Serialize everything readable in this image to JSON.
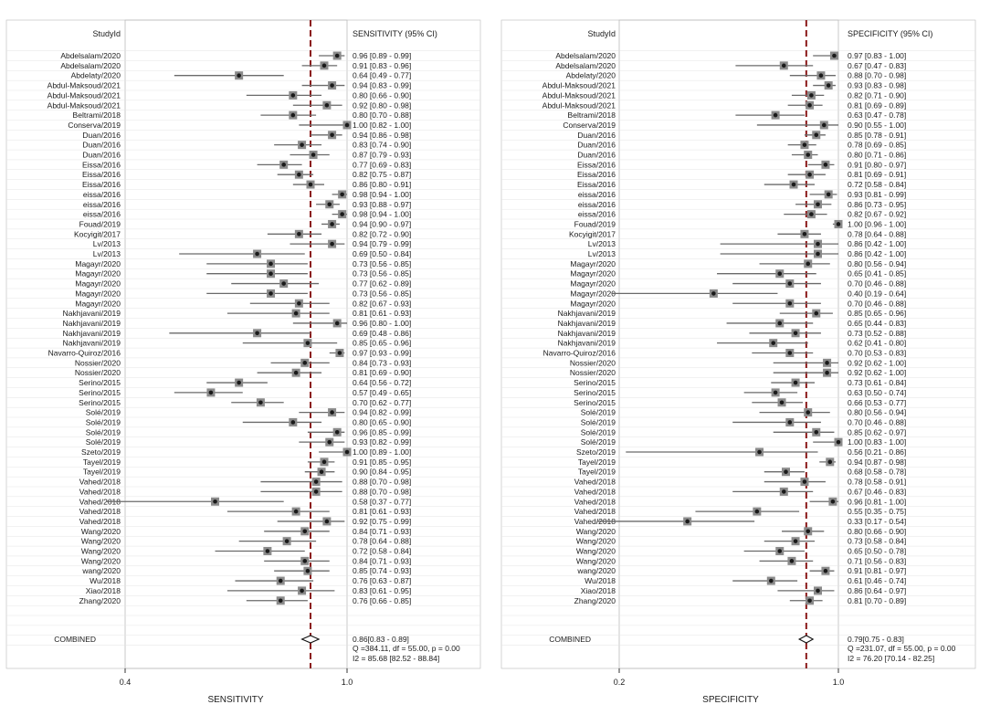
{
  "colors": {
    "background": "#ffffff",
    "panel_border": "#bbbbbb",
    "combined_line": "#8b1a1a",
    "marker_box": "#8a8a8a",
    "marker_point": "#1a1a1a",
    "ci_line": "#6a6a6a",
    "gridline": "#e4e4e4"
  },
  "chart_data": [
    {
      "type": "forest",
      "measure": "sensitivity",
      "axis_label": "SENSITIVITY",
      "study_header": "StudyId",
      "ci_header": "SENSITIVITY (95% CI)",
      "xscale": "log",
      "xlim": [
        0.4,
        1.0
      ],
      "xticks": [
        "0.4",
        "1.0"
      ],
      "tick_values": [
        0.4,
        1.0
      ],
      "combined_value": 0.86,
      "studies": [
        {
          "name": "Abdelsalam/2020",
          "ci_text": "0.96 [0.89 - 0.99]",
          "est": 0.96,
          "lo": 0.89,
          "hi": 0.99
        },
        {
          "name": "Abdelsalam/2020",
          "ci_text": "0.91 [0.83 - 0.96]",
          "est": 0.91,
          "lo": 0.83,
          "hi": 0.96
        },
        {
          "name": "Abdelaty/2020",
          "ci_text": "0.64 [0.49 - 0.77]",
          "est": 0.64,
          "lo": 0.49,
          "hi": 0.77
        },
        {
          "name": "Abdul-Maksoud/2021",
          "ci_text": "0.94 [0.83 - 0.99]",
          "est": 0.94,
          "lo": 0.83,
          "hi": 0.99
        },
        {
          "name": "Abdul-Maksoud/2021",
          "ci_text": "0.80 [0.66 - 0.90]",
          "est": 0.8,
          "lo": 0.66,
          "hi": 0.9
        },
        {
          "name": "Abdul-Maksoud/2021",
          "ci_text": "0.92 [0.80 - 0.98]",
          "est": 0.92,
          "lo": 0.8,
          "hi": 0.98
        },
        {
          "name": "Beltrami/2018",
          "ci_text": "0.80 [0.70 - 0.88]",
          "est": 0.8,
          "lo": 0.7,
          "hi": 0.88
        },
        {
          "name": "Conserva/2019",
          "ci_text": "1.00 [0.82 - 1.00]",
          "est": 1.0,
          "lo": 0.82,
          "hi": 1.0
        },
        {
          "name": "Duan/2016",
          "ci_text": "0.94 [0.86 - 0.98]",
          "est": 0.94,
          "lo": 0.86,
          "hi": 0.98
        },
        {
          "name": "Duan/2016",
          "ci_text": "0.83 [0.74 - 0.90]",
          "est": 0.83,
          "lo": 0.74,
          "hi": 0.9
        },
        {
          "name": "Duan/2016",
          "ci_text": "0.87 [0.79 - 0.93]",
          "est": 0.87,
          "lo": 0.79,
          "hi": 0.93
        },
        {
          "name": "Eissa/2016",
          "ci_text": "0.77 [0.69 - 0.83]",
          "est": 0.77,
          "lo": 0.69,
          "hi": 0.83
        },
        {
          "name": "Eissa/2016",
          "ci_text": "0.82 [0.75 - 0.87]",
          "est": 0.82,
          "lo": 0.75,
          "hi": 0.87
        },
        {
          "name": "Eissa/2016",
          "ci_text": "0.86 [0.80 - 0.91]",
          "est": 0.86,
          "lo": 0.8,
          "hi": 0.91
        },
        {
          "name": "eissa/2016",
          "ci_text": "0.98 [0.94 - 1.00]",
          "est": 0.98,
          "lo": 0.94,
          "hi": 1.0
        },
        {
          "name": "eissa/2016",
          "ci_text": "0.93 [0.88 - 0.97]",
          "est": 0.93,
          "lo": 0.88,
          "hi": 0.97
        },
        {
          "name": "eissa/2016",
          "ci_text": "0.98 [0.94 - 1.00]",
          "est": 0.98,
          "lo": 0.94,
          "hi": 1.0
        },
        {
          "name": "Fouad/2019",
          "ci_text": "0.94 [0.90 - 0.97]",
          "est": 0.94,
          "lo": 0.9,
          "hi": 0.97
        },
        {
          "name": "Kocyigit/2017",
          "ci_text": "0.82 [0.72 - 0.90]",
          "est": 0.82,
          "lo": 0.72,
          "hi": 0.9
        },
        {
          "name": "Lv/2013",
          "ci_text": "0.94 [0.79 - 0.99]",
          "est": 0.94,
          "lo": 0.79,
          "hi": 0.99
        },
        {
          "name": "Lv/2013",
          "ci_text": "0.69 [0.50 - 0.84]",
          "est": 0.69,
          "lo": 0.5,
          "hi": 0.84
        },
        {
          "name": "Magayr/2020",
          "ci_text": "0.73 [0.56 - 0.85]",
          "est": 0.73,
          "lo": 0.56,
          "hi": 0.85
        },
        {
          "name": "Magayr/2020",
          "ci_text": "0.73 [0.56 - 0.85]",
          "est": 0.73,
          "lo": 0.56,
          "hi": 0.85
        },
        {
          "name": "Magayr/2020",
          "ci_text": "0.77 [0.62 - 0.89]",
          "est": 0.77,
          "lo": 0.62,
          "hi": 0.89
        },
        {
          "name": "Magayr/2020",
          "ci_text": "0.73 [0.56 - 0.85]",
          "est": 0.73,
          "lo": 0.56,
          "hi": 0.85
        },
        {
          "name": "Magayr/2020",
          "ci_text": "0.82 [0.67 - 0.93]",
          "est": 0.82,
          "lo": 0.67,
          "hi": 0.93
        },
        {
          "name": "Nakhjavani/2019",
          "ci_text": "0.81 [0.61 - 0.93]",
          "est": 0.81,
          "lo": 0.61,
          "hi": 0.93
        },
        {
          "name": "Nakhjavani/2019",
          "ci_text": "0.96 [0.80 - 1.00]",
          "est": 0.96,
          "lo": 0.8,
          "hi": 1.0
        },
        {
          "name": "Nakhjavani/2019",
          "ci_text": "0.69 [0.48 - 0.86]",
          "est": 0.69,
          "lo": 0.48,
          "hi": 0.86
        },
        {
          "name": "Nakhjavani/2019",
          "ci_text": "0.85 [0.65 - 0.96]",
          "est": 0.85,
          "lo": 0.65,
          "hi": 0.96
        },
        {
          "name": "Navarro-Quiroz/2016",
          "ci_text": "0.97 [0.93 - 0.99]",
          "est": 0.97,
          "lo": 0.93,
          "hi": 0.99
        },
        {
          "name": "Nossier/2020",
          "ci_text": "0.84 [0.73 - 0.93]",
          "est": 0.84,
          "lo": 0.73,
          "hi": 0.93
        },
        {
          "name": "Nossier/2020",
          "ci_text": "0.81 [0.69 - 0.90]",
          "est": 0.81,
          "lo": 0.69,
          "hi": 0.9
        },
        {
          "name": "Serino/2015",
          "ci_text": "0.64 [0.56 - 0.72]",
          "est": 0.64,
          "lo": 0.56,
          "hi": 0.72
        },
        {
          "name": "Serino/2015",
          "ci_text": "0.57 [0.49 - 0.65]",
          "est": 0.57,
          "lo": 0.49,
          "hi": 0.65
        },
        {
          "name": "Serino/2015",
          "ci_text": "0.70 [0.62 - 0.77]",
          "est": 0.7,
          "lo": 0.62,
          "hi": 0.77
        },
        {
          "name": "Solé/2019",
          "ci_text": "0.94 [0.82 - 0.99]",
          "est": 0.94,
          "lo": 0.82,
          "hi": 0.99
        },
        {
          "name": "Solé/2019",
          "ci_text": "0.80 [0.65 - 0.90]",
          "est": 0.8,
          "lo": 0.65,
          "hi": 0.9
        },
        {
          "name": "Solé/2019",
          "ci_text": "0.96 [0.85 - 0.99]",
          "est": 0.96,
          "lo": 0.85,
          "hi": 0.99
        },
        {
          "name": "Solé/2019",
          "ci_text": "0.93 [0.82 - 0.99]",
          "est": 0.93,
          "lo": 0.82,
          "hi": 0.99
        },
        {
          "name": "Szeto/2019",
          "ci_text": "1.00 [0.89 - 1.00]",
          "est": 1.0,
          "lo": 0.89,
          "hi": 1.0
        },
        {
          "name": "Tayel/2019",
          "ci_text": "0.91 [0.85 - 0.95]",
          "est": 0.91,
          "lo": 0.85,
          "hi": 0.95
        },
        {
          "name": "Tayel/2019",
          "ci_text": "0.90 [0.84 - 0.95]",
          "est": 0.9,
          "lo": 0.84,
          "hi": 0.95
        },
        {
          "name": "Vahed/2018",
          "ci_text": "0.88 [0.70 - 0.98]",
          "est": 0.88,
          "lo": 0.7,
          "hi": 0.98
        },
        {
          "name": "Vahed/2018",
          "ci_text": "0.88 [0.70 - 0.98]",
          "est": 0.88,
          "lo": 0.7,
          "hi": 0.98
        },
        {
          "name": "Vahed/2018",
          "ci_text": "0.58 [0.37 - 0.77]",
          "est": 0.58,
          "lo": 0.37,
          "hi": 0.77
        },
        {
          "name": "Vahed/2018",
          "ci_text": "0.81 [0.61 - 0.93]",
          "est": 0.81,
          "lo": 0.61,
          "hi": 0.93
        },
        {
          "name": "Vahed/2018",
          "ci_text": "0.92 [0.75 - 0.99]",
          "est": 0.92,
          "lo": 0.75,
          "hi": 0.99
        },
        {
          "name": "Wang/2020",
          "ci_text": "0.84 [0.71 - 0.93]",
          "est": 0.84,
          "lo": 0.71,
          "hi": 0.93
        },
        {
          "name": "Wang/2020",
          "ci_text": "0.78 [0.64 - 0.88]",
          "est": 0.78,
          "lo": 0.64,
          "hi": 0.88
        },
        {
          "name": "Wang/2020",
          "ci_text": "0.72 [0.58 - 0.84]",
          "est": 0.72,
          "lo": 0.58,
          "hi": 0.84
        },
        {
          "name": "Wang/2020",
          "ci_text": "0.84 [0.71 - 0.93]",
          "est": 0.84,
          "lo": 0.71,
          "hi": 0.93
        },
        {
          "name": "wang/2020",
          "ci_text": "0.85 [0.74 - 0.93]",
          "est": 0.85,
          "lo": 0.74,
          "hi": 0.93
        },
        {
          "name": "Wu/2018",
          "ci_text": "0.76 [0.63 - 0.87]",
          "est": 0.76,
          "lo": 0.63,
          "hi": 0.87
        },
        {
          "name": "Xiao/2018",
          "ci_text": "0.83 [0.61 - 0.95]",
          "est": 0.83,
          "lo": 0.61,
          "hi": 0.95
        },
        {
          "name": "Zhang/2020",
          "ci_text": "0.76 [0.66 - 0.85]",
          "est": 0.76,
          "lo": 0.66,
          "hi": 0.85
        }
      ],
      "combined": {
        "label": "COMBINED",
        "est": 0.86,
        "lo": 0.83,
        "hi": 0.89,
        "ci_text": "0.86[0.83 - 0.89]",
        "q_text": "Q =384.11, df = 55.00, p = 0.00",
        "i2_text": "I2 = 85.68 [82.52 - 88.84]"
      }
    },
    {
      "type": "forest",
      "measure": "specificity",
      "axis_label": "SPECIFICITY",
      "study_header": "StudyId",
      "ci_header": "SPECIFICITY (95% CI)",
      "xscale": "log",
      "xlim": [
        0.2,
        1.0
      ],
      "xticks": [
        "0.2",
        "1.0"
      ],
      "tick_values": [
        0.2,
        1.0
      ],
      "combined_value": 0.79,
      "studies": [
        {
          "name": "Abdelsalam/2020",
          "ci_text": "0.97 [0.83 - 1.00]",
          "est": 0.97,
          "lo": 0.83,
          "hi": 1.0
        },
        {
          "name": "Abdelsalam/2020",
          "ci_text": "0.67 [0.47 - 0.83]",
          "est": 0.67,
          "lo": 0.47,
          "hi": 0.83
        },
        {
          "name": "Abdelaty/2020",
          "ci_text": "0.88 [0.70 - 0.98]",
          "est": 0.88,
          "lo": 0.7,
          "hi": 0.98
        },
        {
          "name": "Abdul-Maksoud/2021",
          "ci_text": "0.93 [0.83 - 0.98]",
          "est": 0.93,
          "lo": 0.83,
          "hi": 0.98
        },
        {
          "name": "Abdul-Maksoud/2021",
          "ci_text": "0.82 [0.71 - 0.90]",
          "est": 0.82,
          "lo": 0.71,
          "hi": 0.9
        },
        {
          "name": "Abdul-Maksoud/2021",
          "ci_text": "0.81 [0.69 - 0.89]",
          "est": 0.81,
          "lo": 0.69,
          "hi": 0.89
        },
        {
          "name": "Beltrami/2018",
          "ci_text": "0.63 [0.47 - 0.78]",
          "est": 0.63,
          "lo": 0.47,
          "hi": 0.78
        },
        {
          "name": "Conserva/2019",
          "ci_text": "0.90 [0.55 - 1.00]",
          "est": 0.9,
          "lo": 0.55,
          "hi": 1.0
        },
        {
          "name": "Duan/2016",
          "ci_text": "0.85 [0.78 - 0.91]",
          "est": 0.85,
          "lo": 0.78,
          "hi": 0.91
        },
        {
          "name": "Duan/2016",
          "ci_text": "0.78 [0.69 - 0.85]",
          "est": 0.78,
          "lo": 0.69,
          "hi": 0.85
        },
        {
          "name": "Duan/2016",
          "ci_text": "0.80 [0.71 - 0.86]",
          "est": 0.8,
          "lo": 0.71,
          "hi": 0.86
        },
        {
          "name": "Eissa/2016",
          "ci_text": "0.91 [0.80 - 0.97]",
          "est": 0.91,
          "lo": 0.8,
          "hi": 0.97
        },
        {
          "name": "Eissa/2016",
          "ci_text": "0.81 [0.69 - 0.91]",
          "est": 0.81,
          "lo": 0.69,
          "hi": 0.91
        },
        {
          "name": "Eissa/2016",
          "ci_text": "0.72 [0.58 - 0.84]",
          "est": 0.72,
          "lo": 0.58,
          "hi": 0.84
        },
        {
          "name": "eissa/2016",
          "ci_text": "0.93 [0.81 - 0.99]",
          "est": 0.93,
          "lo": 0.81,
          "hi": 0.99
        },
        {
          "name": "eissa/2016",
          "ci_text": "0.86 [0.73 - 0.95]",
          "est": 0.86,
          "lo": 0.73,
          "hi": 0.95
        },
        {
          "name": "eissa/2016",
          "ci_text": "0.82 [0.67 - 0.92]",
          "est": 0.82,
          "lo": 0.67,
          "hi": 0.92
        },
        {
          "name": "Fouad/2019",
          "ci_text": "1.00 [0.96 - 1.00]",
          "est": 1.0,
          "lo": 0.96,
          "hi": 1.0
        },
        {
          "name": "Kocyigit/2017",
          "ci_text": "0.78 [0.64 - 0.88]",
          "est": 0.78,
          "lo": 0.64,
          "hi": 0.88
        },
        {
          "name": "Lv/2013",
          "ci_text": "0.86 [0.42 - 1.00]",
          "est": 0.86,
          "lo": 0.42,
          "hi": 1.0
        },
        {
          "name": "Lv/2013",
          "ci_text": "0.86 [0.42 - 1.00]",
          "est": 0.86,
          "lo": 0.42,
          "hi": 1.0
        },
        {
          "name": "Magayr/2020",
          "ci_text": "0.80 [0.56 - 0.94]",
          "est": 0.8,
          "lo": 0.56,
          "hi": 0.94
        },
        {
          "name": "Magayr/2020",
          "ci_text": "0.65 [0.41 - 0.85]",
          "est": 0.65,
          "lo": 0.41,
          "hi": 0.85
        },
        {
          "name": "Magayr/2020",
          "ci_text": "0.70 [0.46 - 0.88]",
          "est": 0.7,
          "lo": 0.46,
          "hi": 0.88
        },
        {
          "name": "Magayr/2020",
          "ci_text": "0.40 [0.19 - 0.64]",
          "est": 0.4,
          "lo": 0.19,
          "hi": 0.64
        },
        {
          "name": "Magayr/2020",
          "ci_text": "0.70 [0.46 - 0.88]",
          "est": 0.7,
          "lo": 0.46,
          "hi": 0.88
        },
        {
          "name": "Nakhjavani/2019",
          "ci_text": "0.85 [0.65 - 0.96]",
          "est": 0.85,
          "lo": 0.65,
          "hi": 0.96
        },
        {
          "name": "Nakhjavani/2019",
          "ci_text": "0.65 [0.44 - 0.83]",
          "est": 0.65,
          "lo": 0.44,
          "hi": 0.83
        },
        {
          "name": "Nakhjavani/2019",
          "ci_text": "0.73 [0.52 - 0.88]",
          "est": 0.73,
          "lo": 0.52,
          "hi": 0.88
        },
        {
          "name": "Nakhjavani/2019",
          "ci_text": "0.62 [0.41 - 0.80]",
          "est": 0.62,
          "lo": 0.41,
          "hi": 0.8
        },
        {
          "name": "Navarro-Quiroz/2016",
          "ci_text": "0.70 [0.53 - 0.83]",
          "est": 0.7,
          "lo": 0.53,
          "hi": 0.83
        },
        {
          "name": "Nossier/2020",
          "ci_text": "0.92 [0.62 - 1.00]",
          "est": 0.92,
          "lo": 0.62,
          "hi": 1.0
        },
        {
          "name": "Nossier/2020",
          "ci_text": "0.92 [0.62 - 1.00]",
          "est": 0.92,
          "lo": 0.62,
          "hi": 1.0
        },
        {
          "name": "Serino/2015",
          "ci_text": "0.73 [0.61 - 0.84]",
          "est": 0.73,
          "lo": 0.61,
          "hi": 0.84
        },
        {
          "name": "Serino/2015",
          "ci_text": "0.63 [0.50 - 0.74]",
          "est": 0.63,
          "lo": 0.5,
          "hi": 0.74
        },
        {
          "name": "Serino/2015",
          "ci_text": "0.66 [0.53 - 0.77]",
          "est": 0.66,
          "lo": 0.53,
          "hi": 0.77
        },
        {
          "name": "Solé/2019",
          "ci_text": "0.80 [0.56 - 0.94]",
          "est": 0.8,
          "lo": 0.56,
          "hi": 0.94
        },
        {
          "name": "Solé/2019",
          "ci_text": "0.70 [0.46 - 0.88]",
          "est": 0.7,
          "lo": 0.46,
          "hi": 0.88
        },
        {
          "name": "Solé/2019",
          "ci_text": "0.85 [0.62 - 0.97]",
          "est": 0.85,
          "lo": 0.62,
          "hi": 0.97
        },
        {
          "name": "Solé/2019",
          "ci_text": "1.00 [0.83 - 1.00]",
          "est": 1.0,
          "lo": 0.83,
          "hi": 1.0
        },
        {
          "name": "Szeto/2019",
          "ci_text": "0.56 [0.21 - 0.86]",
          "est": 0.56,
          "lo": 0.21,
          "hi": 0.86
        },
        {
          "name": "Tayel/2019",
          "ci_text": "0.94 [0.87 - 0.98]",
          "est": 0.94,
          "lo": 0.87,
          "hi": 0.98
        },
        {
          "name": "Tayel/2019",
          "ci_text": "0.68 [0.58 - 0.78]",
          "est": 0.68,
          "lo": 0.58,
          "hi": 0.78
        },
        {
          "name": "Vahed/2018",
          "ci_text": "0.78 [0.58 - 0.91]",
          "est": 0.78,
          "lo": 0.58,
          "hi": 0.91
        },
        {
          "name": "Vahed/2018",
          "ci_text": "0.67 [0.46 - 0.83]",
          "est": 0.67,
          "lo": 0.46,
          "hi": 0.83
        },
        {
          "name": "Vahed/2018",
          "ci_text": "0.96 [0.81 - 1.00]",
          "est": 0.96,
          "lo": 0.81,
          "hi": 1.0
        },
        {
          "name": "Vahed/2018",
          "ci_text": "0.55 [0.35 - 0.75]",
          "est": 0.55,
          "lo": 0.35,
          "hi": 0.75
        },
        {
          "name": "Vahed/2018",
          "ci_text": "0.33 [0.17 - 0.54]",
          "est": 0.33,
          "lo": 0.17,
          "hi": 0.54
        },
        {
          "name": "Wang/2020",
          "ci_text": "0.80 [0.66 - 0.90]",
          "est": 0.8,
          "lo": 0.66,
          "hi": 0.9
        },
        {
          "name": "Wang/2020",
          "ci_text": "0.73 [0.58 - 0.84]",
          "est": 0.73,
          "lo": 0.58,
          "hi": 0.84
        },
        {
          "name": "Wang/2020",
          "ci_text": "0.65 [0.50 - 0.78]",
          "est": 0.65,
          "lo": 0.5,
          "hi": 0.78
        },
        {
          "name": "Wang/2020",
          "ci_text": "0.71 [0.56 - 0.83]",
          "est": 0.71,
          "lo": 0.56,
          "hi": 0.83
        },
        {
          "name": "wang/2020",
          "ci_text": "0.91 [0.81 - 0.97]",
          "est": 0.91,
          "lo": 0.81,
          "hi": 0.97
        },
        {
          "name": "Wu/2018",
          "ci_text": "0.61 [0.46 - 0.74]",
          "est": 0.61,
          "lo": 0.46,
          "hi": 0.74
        },
        {
          "name": "Xiao/2018",
          "ci_text": "0.86 [0.64 - 0.97]",
          "est": 0.86,
          "lo": 0.64,
          "hi": 0.97
        },
        {
          "name": "Zhang/2020",
          "ci_text": "0.81 [0.70 - 0.89]",
          "est": 0.81,
          "lo": 0.7,
          "hi": 0.89
        }
      ],
      "combined": {
        "label": "COMBINED",
        "est": 0.79,
        "lo": 0.75,
        "hi": 0.83,
        "ci_text": "0.79[0.75 - 0.83]",
        "q_text": "Q =231.07, df = 55.00, p = 0.00",
        "i2_text": "I2 = 76.20 [70.14 - 82.25]"
      }
    }
  ]
}
